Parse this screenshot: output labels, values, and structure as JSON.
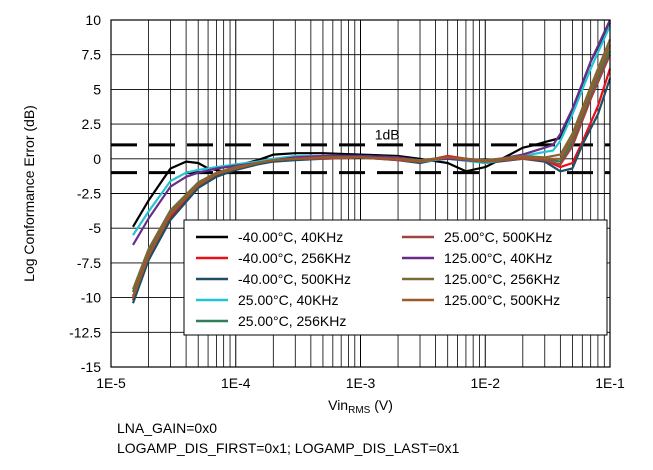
{
  "chart_data": {
    "type": "line",
    "title": "",
    "ylabel": "Log Conformance Error (dB)",
    "xlabel": {
      "main": "Vin",
      "sub": "RMS",
      "unit": " (V)"
    },
    "x_scale": "log",
    "xlim": [
      1e-05,
      0.1
    ],
    "ylim": [
      -15,
      10
    ],
    "x_ticks": [
      {
        "value": 1e-05,
        "label": "1E-5"
      },
      {
        "value": 0.0001,
        "label": "1E-4"
      },
      {
        "value": 0.001,
        "label": "1E-3"
      },
      {
        "value": 0.01,
        "label": "1E-2"
      },
      {
        "value": 0.1,
        "label": "1E-1"
      }
    ],
    "y_ticks": [
      {
        "value": 10,
        "label": "10"
      },
      {
        "value": 7.5,
        "label": "7.5"
      },
      {
        "value": 5,
        "label": "5"
      },
      {
        "value": 2.5,
        "label": "2.5"
      },
      {
        "value": 0,
        "label": "0"
      },
      {
        "value": -2.5,
        "label": "-2.5"
      },
      {
        "value": -5,
        "label": "-5"
      },
      {
        "value": -7.5,
        "label": "-7.5"
      },
      {
        "value": -10,
        "label": "-10"
      },
      {
        "value": -12.5,
        "label": "-12.5"
      },
      {
        "value": -15,
        "label": "-15"
      }
    ],
    "grid": true,
    "legend_position": "lower-right",
    "reference_lines": [
      {
        "y": 1,
        "style": "dashed",
        "color": "#000000"
      },
      {
        "y": -1,
        "style": "dashed",
        "color": "#000000"
      }
    ],
    "annotations": [
      {
        "text": "1dB",
        "x": 0.0013,
        "y": 1.4
      }
    ],
    "series": [
      {
        "name": "-40.00°C, 40KHz",
        "color": "#000000",
        "x": [
          1.5e-05,
          2e-05,
          3e-05,
          4e-05,
          5e-05,
          6e-05,
          8e-05,
          0.0001,
          0.00015,
          0.0002,
          0.0003,
          0.0005,
          0.001,
          0.002,
          0.003,
          0.005,
          0.007,
          0.01,
          0.015,
          0.02,
          0.025,
          0.03,
          0.04,
          0.05,
          0.07,
          0.1
        ],
        "y": [
          -4.9,
          -3.0,
          -0.7,
          -0.2,
          -0.3,
          -0.7,
          -0.9,
          -0.5,
          -0.1,
          0.3,
          0.4,
          0.4,
          0.3,
          0.2,
          0.0,
          -0.3,
          -0.9,
          -0.6,
          0.2,
          0.8,
          1.0,
          1.2,
          1.5,
          3.5,
          7.0,
          9.8
        ]
      },
      {
        "name": "-40.00°C, 256KHz",
        "color": "#e8101a",
        "x": [
          1.5e-05,
          2e-05,
          3e-05,
          5e-05,
          7e-05,
          0.0001,
          0.00015,
          0.0002,
          0.0003,
          0.0005,
          0.001,
          0.002,
          0.003,
          0.005,
          0.01,
          0.02,
          0.03,
          0.04,
          0.05,
          0.06,
          0.08,
          0.1
        ],
        "y": [
          -10.2,
          -7.0,
          -4.2,
          -2.0,
          -1.2,
          -0.7,
          -0.3,
          -0.1,
          0.0,
          0.1,
          0.1,
          0.0,
          -0.2,
          0.2,
          -0.2,
          0.1,
          -0.1,
          -0.6,
          -0.3,
          1.2,
          3.8,
          6.5
        ]
      },
      {
        "name": "-40.00°C, 500KHz",
        "color": "#1f4e66",
        "x": [
          1.5e-05,
          2e-05,
          3e-05,
          5e-05,
          7e-05,
          0.0001,
          0.00015,
          0.0002,
          0.0003,
          0.0005,
          0.001,
          0.002,
          0.003,
          0.005,
          0.01,
          0.02,
          0.03,
          0.04,
          0.05,
          0.06,
          0.08,
          0.1
        ],
        "y": [
          -10.4,
          -7.3,
          -4.4,
          -2.1,
          -1.3,
          -0.8,
          -0.4,
          -0.2,
          -0.1,
          0.0,
          0.1,
          -0.1,
          -0.3,
          0.1,
          -0.3,
          0.0,
          -0.2,
          -0.9,
          -0.7,
          1.0,
          3.2,
          5.8
        ]
      },
      {
        "name": "25.00°C, 40KHz",
        "color": "#22c4d4",
        "x": [
          1.5e-05,
          2e-05,
          3e-05,
          4e-05,
          5e-05,
          7e-05,
          0.0001,
          0.00015,
          0.0002,
          0.0003,
          0.0005,
          0.001,
          0.002,
          0.003,
          0.005,
          0.01,
          0.02,
          0.03,
          0.035,
          0.04,
          0.05,
          0.07,
          0.1
        ],
        "y": [
          -5.5,
          -3.8,
          -1.6,
          -1.0,
          -0.8,
          -0.6,
          -0.4,
          -0.2,
          0.0,
          0.2,
          0.2,
          0.2,
          0.1,
          -0.2,
          0.0,
          -0.3,
          0.2,
          0.5,
          0.6,
          1.3,
          3.2,
          6.5,
          9.6
        ]
      },
      {
        "name": "25.00°C, 256KHz",
        "color": "#2e7d5b",
        "x": [
          1.5e-05,
          2e-05,
          3e-05,
          5e-05,
          7e-05,
          0.0001,
          0.00015,
          0.0002,
          0.0003,
          0.0005,
          0.001,
          0.002,
          0.003,
          0.005,
          0.01,
          0.02,
          0.03,
          0.04,
          0.05,
          0.07,
          0.1
        ],
        "y": [
          -9.6,
          -6.6,
          -3.8,
          -1.8,
          -1.1,
          -0.6,
          -0.3,
          -0.1,
          0.0,
          0.1,
          0.1,
          0.0,
          -0.1,
          0.1,
          -0.2,
          0.1,
          0.0,
          -0.2,
          1.2,
          4.6,
          7.8
        ]
      },
      {
        "name": "25.00°C, 500KHz",
        "color": "#a0453f",
        "x": [
          1.5e-05,
          2e-05,
          3e-05,
          5e-05,
          7e-05,
          0.0001,
          0.00015,
          0.0002,
          0.0003,
          0.0005,
          0.001,
          0.002,
          0.003,
          0.005,
          0.01,
          0.02,
          0.03,
          0.04,
          0.05,
          0.07,
          0.1
        ],
        "y": [
          -9.9,
          -6.9,
          -4.0,
          -1.9,
          -1.1,
          -0.7,
          -0.3,
          -0.1,
          0.0,
          0.0,
          0.1,
          -0.1,
          -0.2,
          0.1,
          -0.2,
          0.0,
          -0.1,
          -0.4,
          0.9,
          4.3,
          7.5
        ]
      },
      {
        "name": "125.00°C, 40KHz",
        "color": "#6a2c8a",
        "x": [
          1.5e-05,
          2e-05,
          3e-05,
          4e-05,
          5e-05,
          7e-05,
          0.0001,
          0.00015,
          0.0002,
          0.0003,
          0.0005,
          0.001,
          0.002,
          0.003,
          0.005,
          0.01,
          0.02,
          0.03,
          0.035,
          0.04,
          0.05,
          0.07,
          0.1
        ],
        "y": [
          -6.2,
          -4.3,
          -2.0,
          -1.3,
          -1.0,
          -0.7,
          -0.5,
          -0.3,
          -0.1,
          0.1,
          0.2,
          0.2,
          0.1,
          -0.1,
          0.0,
          -0.2,
          0.3,
          0.8,
          1.0,
          1.8,
          3.6,
          7.0,
          10.0
        ]
      },
      {
        "name": "125.00°C, 256KHz",
        "color": "#7a6a3a",
        "x": [
          1.5e-05,
          2e-05,
          3e-05,
          5e-05,
          7e-05,
          0.0001,
          0.00015,
          0.0002,
          0.0003,
          0.0005,
          0.001,
          0.002,
          0.003,
          0.005,
          0.01,
          0.02,
          0.03,
          0.04,
          0.05,
          0.07,
          0.1
        ],
        "y": [
          -9.4,
          -6.5,
          -3.7,
          -1.7,
          -1.0,
          -0.6,
          -0.3,
          -0.1,
          0.0,
          0.1,
          0.1,
          0.0,
          -0.1,
          0.1,
          -0.1,
          0.2,
          0.1,
          0.3,
          1.8,
          5.2,
          8.6
        ]
      },
      {
        "name": "125.00°C, 500KHz",
        "color": "#9a5a2a",
        "x": [
          1.5e-05,
          2e-05,
          3e-05,
          5e-05,
          7e-05,
          0.0001,
          0.00015,
          0.0002,
          0.0003,
          0.0005,
          0.001,
          0.002,
          0.003,
          0.005,
          0.01,
          0.02,
          0.03,
          0.04,
          0.05,
          0.07,
          0.1
        ],
        "y": [
          -10.0,
          -7.0,
          -4.0,
          -1.9,
          -1.1,
          -0.7,
          -0.3,
          -0.1,
          0.0,
          0.1,
          0.1,
          0.0,
          -0.2,
          0.1,
          -0.2,
          0.1,
          0.0,
          0.0,
          1.5,
          4.9,
          8.2
        ]
      }
    ]
  },
  "notes": {
    "line1": "LNA_GAIN=0x0",
    "line2": "LOGAMP_DIS_FIRST=0x1; LOGAMP_DIS_LAST=0x1"
  }
}
